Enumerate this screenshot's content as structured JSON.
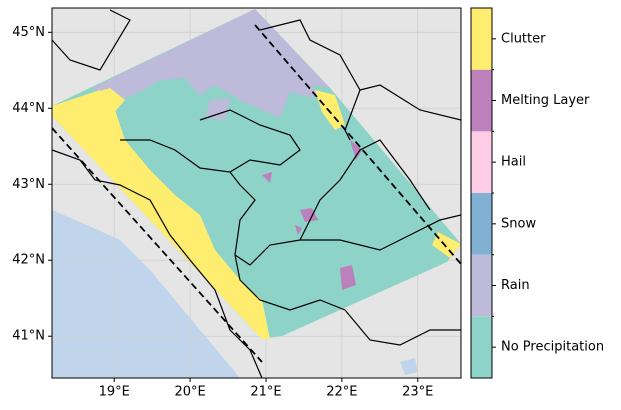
{
  "map": {
    "xlim": [
      18.18,
      23.57
    ],
    "ylim": [
      40.45,
      45.32
    ],
    "xticks": [
      {
        "value": 19,
        "label": "19°E"
      },
      {
        "value": 20,
        "label": "20°E"
      },
      {
        "value": 21,
        "label": "21°E"
      },
      {
        "value": 22,
        "label": "22°E"
      },
      {
        "value": 23,
        "label": "23°E"
      }
    ],
    "yticks": [
      {
        "value": 41,
        "label": "41°N"
      },
      {
        "value": 42,
        "label": "42°N"
      },
      {
        "value": 43,
        "label": "43°N"
      },
      {
        "value": 44,
        "label": "44°N"
      },
      {
        "value": 45,
        "label": "45°N"
      }
    ],
    "grid": true,
    "colorbar": {
      "classes": [
        {
          "name": "No Precipitation",
          "color": "#8dd3c7"
        },
        {
          "name": "Rain",
          "color": "#bebada"
        },
        {
          "name": "Snow",
          "color": "#80b1d3"
        },
        {
          "name": "Hail",
          "color": "#fccde5"
        },
        {
          "name": "Melting Layer",
          "color": "#bc80bd"
        },
        {
          "name": "Clutter",
          "color": "#ffed6f"
        }
      ]
    }
  }
}
